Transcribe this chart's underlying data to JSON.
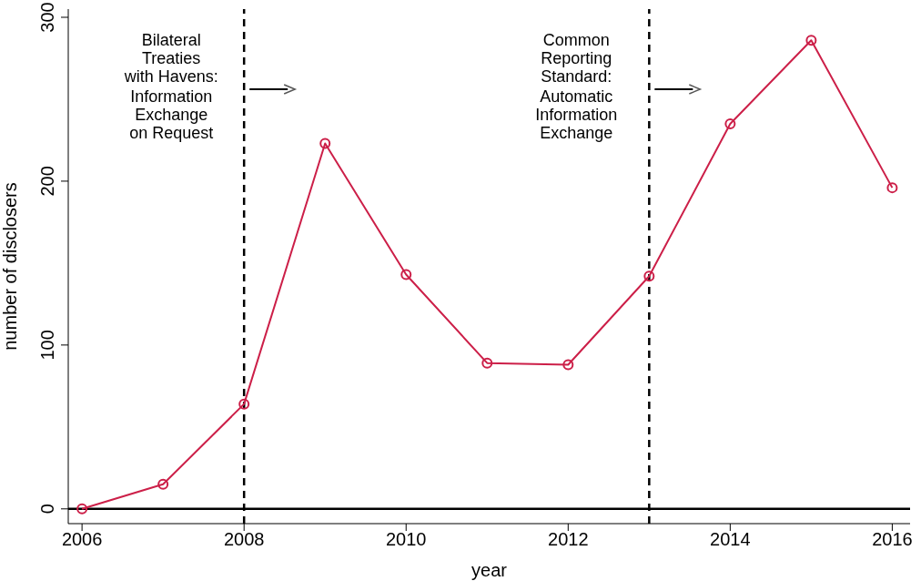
{
  "chart_data": {
    "type": "line",
    "xlabel": "year",
    "ylabel": "number of disclosers",
    "x": [
      2006,
      2007,
      2008,
      2009,
      2010,
      2011,
      2012,
      2013,
      2014,
      2015,
      2016
    ],
    "series": [
      {
        "color": "#cc1f48",
        "values": [
          0,
          15,
          64,
          223,
          143,
          89,
          88,
          142,
          235,
          286,
          196
        ]
      }
    ],
    "xlim": [
      2005.83,
      2016.22
    ],
    "xticks": [
      2006,
      2008,
      2010,
      2012,
      2014,
      2016
    ],
    "ylim": [
      -9,
      305
    ],
    "yticks": [
      0,
      100,
      200,
      300
    ],
    "grid": false,
    "legend": false,
    "marker": "circle",
    "line_style": "solid",
    "ref_lines": [
      {
        "axis": "y",
        "value": 0,
        "color": "#000000",
        "line_style": "solid"
      },
      {
        "axis": "x",
        "value": 2008,
        "color": "#000000",
        "line_style": "dashed"
      },
      {
        "axis": "x",
        "value": 2013,
        "color": "#000000",
        "line_style": "dashed"
      }
    ],
    "annotations": [
      "Bilateral\nTreaties\nwith Havens:",
      "Information\nExchange\non Request",
      "Common\nReporting\nStandard:",
      "Automatic\nInformation\nExchange"
    ]
  }
}
